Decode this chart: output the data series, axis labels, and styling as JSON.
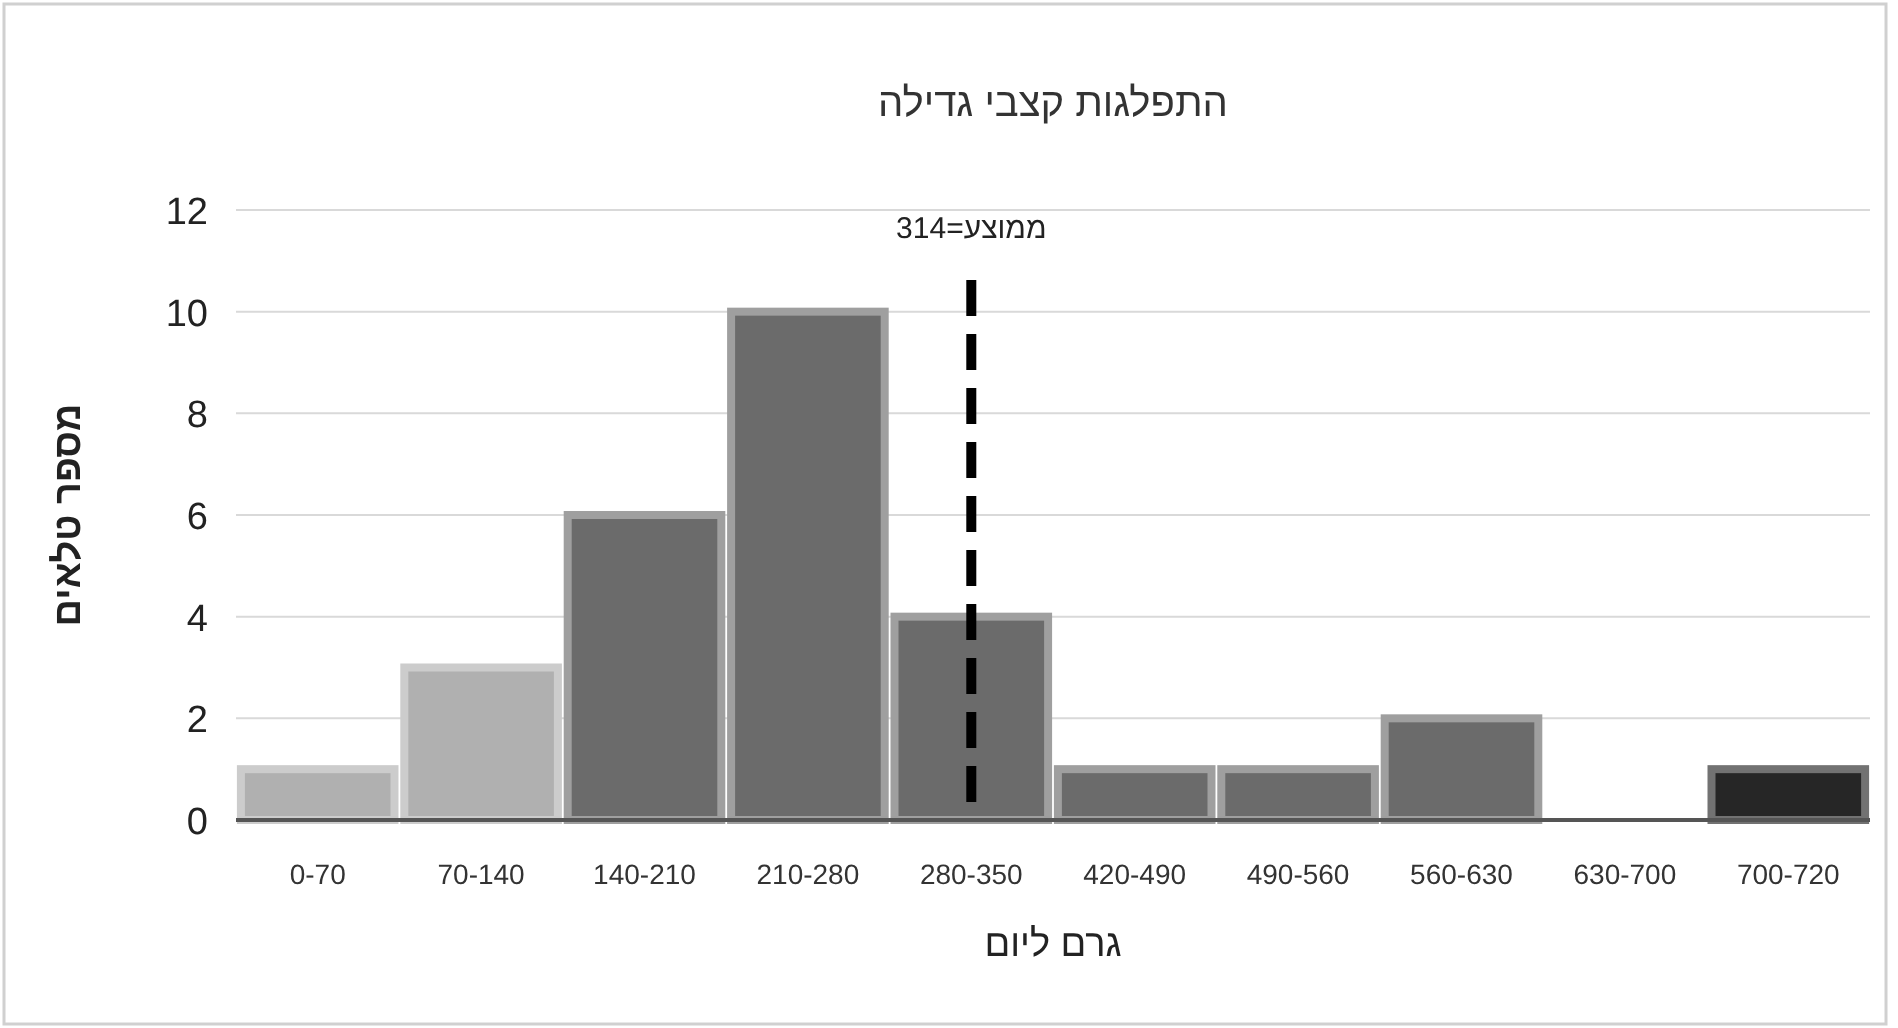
{
  "chart_data": {
    "type": "bar",
    "title": "התפלגות קצבי גדילה",
    "xlabel": "גרם ליום",
    "ylabel": "מספר טלאים",
    "categories": [
      "0-70",
      "70-140",
      "140-210",
      "210-280",
      "280-350",
      "420-490",
      "490-560",
      "560-630",
      "630-700",
      "700-720"
    ],
    "values": [
      1,
      3,
      6,
      10,
      4,
      1,
      1,
      2,
      0,
      1
    ],
    "colors": [
      "#b0b0b0",
      "#b0b0b0",
      "#6b6b6b",
      "#6b6b6b",
      "#6b6b6b",
      "#6b6b6b",
      "#6b6b6b",
      "#6b6b6b",
      "#6b6b6b",
      "#262626"
    ],
    "ylim": [
      0,
      12
    ],
    "yticks": [
      0,
      2,
      4,
      6,
      8,
      10,
      12
    ],
    "grid": "y",
    "ref_lines": [
      {
        "axis": "x",
        "value": "280-350",
        "label": "ממוצע=314",
        "line_style": "dashed",
        "color": "#000000"
      }
    ]
  }
}
